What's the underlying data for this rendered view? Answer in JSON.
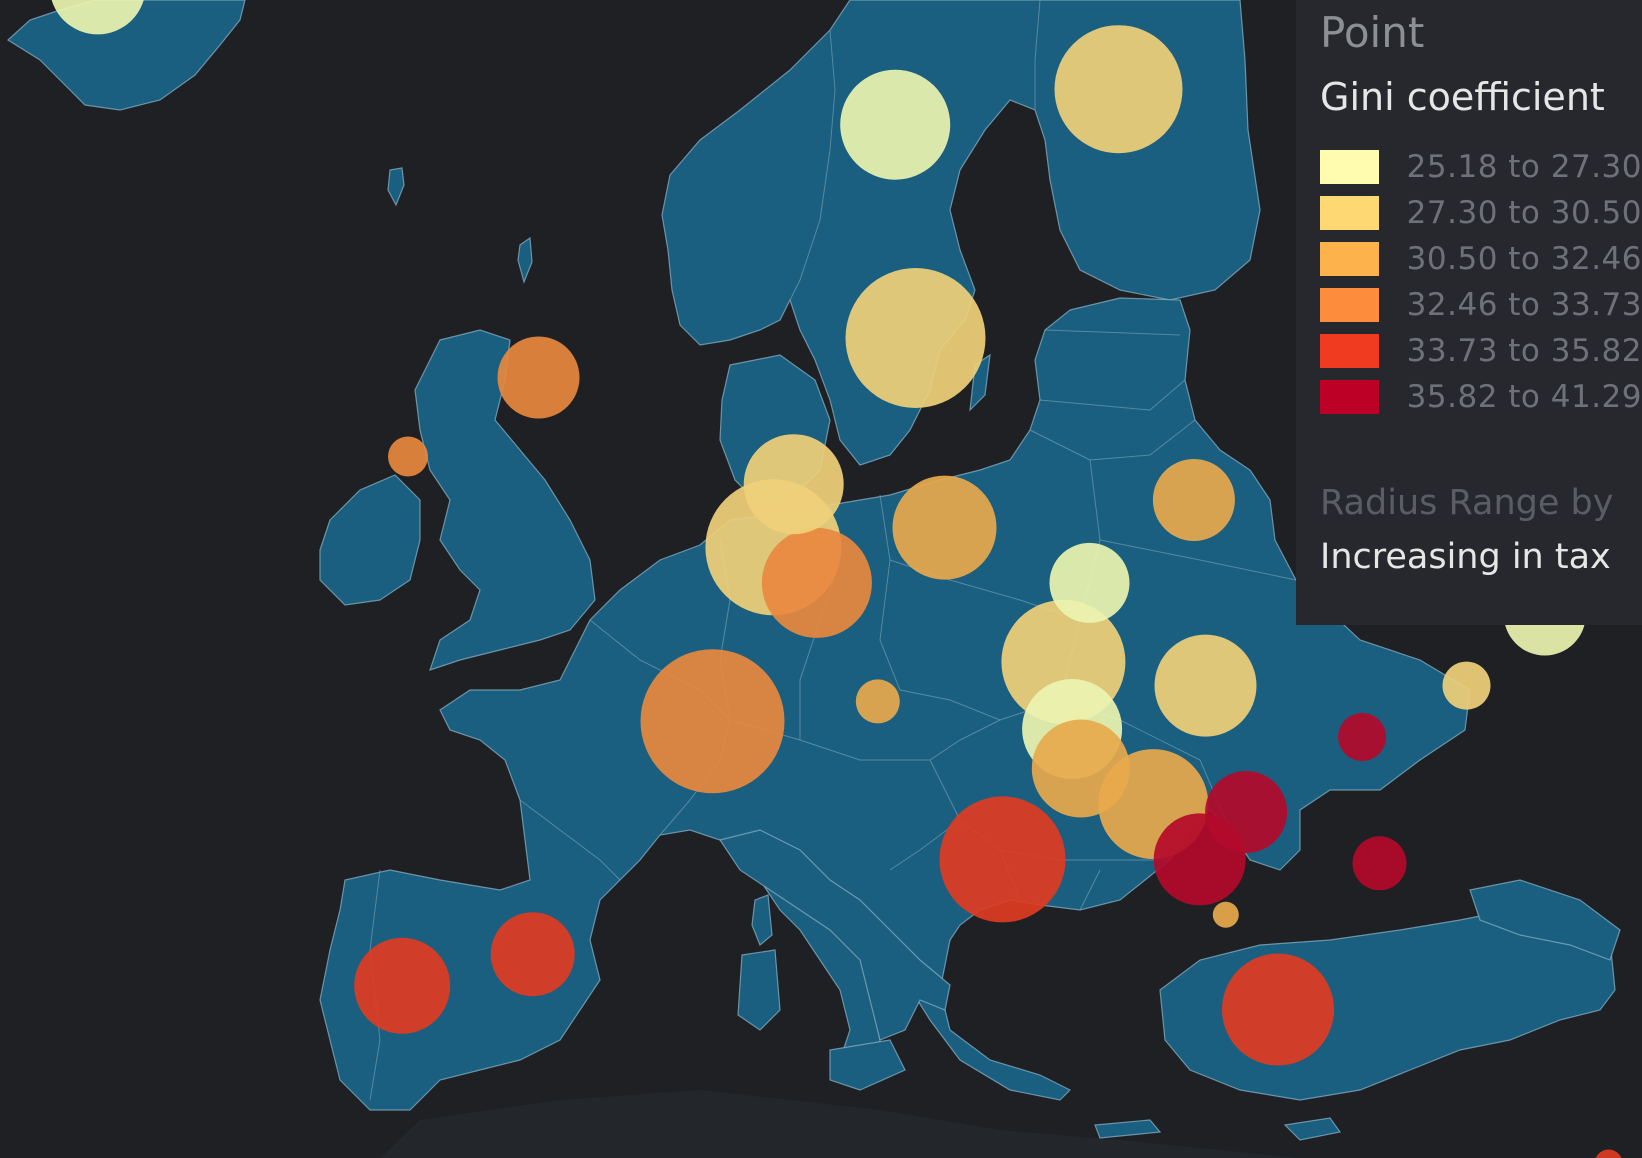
{
  "legend": {
    "title": "Point",
    "subtitle": "Gini coefficient",
    "items": [
      {
        "label": "25.18 to 27.30",
        "color": "#fffcb0"
      },
      {
        "label": "27.30 to 30.50",
        "color": "#fed872"
      },
      {
        "label": "30.50 to 32.46",
        "color": "#feb24c"
      },
      {
        "label": "32.46 to 33.73",
        "color": "#fd8d3c"
      },
      {
        "label": "33.73 to 35.82",
        "color": "#f03b20"
      },
      {
        "label": "35.82 to 41.29",
        "color": "#bd0026"
      }
    ],
    "radius_label": "Radius Range by",
    "radius_value": "Increasing in tax"
  },
  "colors": {
    "background": "#1e2024",
    "land": "#1a5f80",
    "bubbles": [
      "#ecf4b0",
      "#f0d07a",
      "#e8a94c",
      "#e8883e",
      "#e03c22",
      "#b40a2a"
    ]
  },
  "chart_data": {
    "type": "scatter",
    "title": "Gini coefficient",
    "color_variable": "Gini coefficient",
    "radius_variable": "Increasing in tax",
    "bins": [
      {
        "class": 1,
        "range": [
          25.18,
          27.3
        ]
      },
      {
        "class": 2,
        "range": [
          27.3,
          30.5
        ]
      },
      {
        "class": 3,
        "range": [
          30.5,
          32.46
        ]
      },
      {
        "class": 4,
        "range": [
          32.46,
          33.73
        ]
      },
      {
        "class": 5,
        "range": [
          33.73,
          35.82
        ]
      },
      {
        "class": 6,
        "range": [
          35.82,
          41.29
        ]
      }
    ],
    "points": [
      {
        "lon": -18.7,
        "lat": 64.9,
        "class": 1,
        "size": 48
      },
      {
        "lon": 8.8,
        "lat": 61.4,
        "class": 1,
        "size": 55
      },
      {
        "lon": 16.5,
        "lat": 62.3,
        "class": 2,
        "size": 64
      },
      {
        "lon": 26.2,
        "lat": 64.5,
        "class": 1,
        "size": 62
      },
      {
        "lon": 9.5,
        "lat": 56.0,
        "class": 2,
        "size": 70
      },
      {
        "lon": 25.0,
        "lat": 58.7,
        "class": 4,
        "size": 37
      },
      {
        "lon": 24.8,
        "lat": 57.0,
        "class": 5,
        "size": 31
      },
      {
        "lon": 23.9,
        "lat": 55.3,
        "class": 6,
        "size": 27
      },
      {
        "lon": -3.5,
        "lat": 55.0,
        "class": 4,
        "size": 41
      },
      {
        "lon": -8.0,
        "lat": 53.0,
        "class": 4,
        "size": 20
      },
      {
        "lon": 28.0,
        "lat": 53.5,
        "class": 1,
        "size": 44
      },
      {
        "lon": 5.3,
        "lat": 52.3,
        "class": 2,
        "size": 50
      },
      {
        "lon": 4.6,
        "lat": 50.7,
        "class": 2,
        "size": 68
      },
      {
        "lon": 6.1,
        "lat": 49.8,
        "class": 4,
        "size": 55
      },
      {
        "lon": 10.5,
        "lat": 51.2,
        "class": 3,
        "size": 52
      },
      {
        "lon": 19.1,
        "lat": 51.9,
        "class": 3,
        "size": 41
      },
      {
        "lon": 15.5,
        "lat": 49.8,
        "class": 1,
        "size": 40
      },
      {
        "lon": 14.6,
        "lat": 47.8,
        "class": 2,
        "size": 62
      },
      {
        "lon": 19.5,
        "lat": 47.2,
        "class": 2,
        "size": 51
      },
      {
        "lon": 31.2,
        "lat": 49.0,
        "class": 1,
        "size": 41
      },
      {
        "lon": 28.5,
        "lat": 47.2,
        "class": 2,
        "size": 24
      },
      {
        "lon": 2.5,
        "lat": 46.3,
        "class": 4,
        "size": 72
      },
      {
        "lon": 8.2,
        "lat": 46.8,
        "class": 3,
        "size": 22
      },
      {
        "lon": 14.9,
        "lat": 46.1,
        "class": 1,
        "size": 50
      },
      {
        "lon": 15.2,
        "lat": 45.1,
        "class": 3,
        "size": 49
      },
      {
        "lon": 17.7,
        "lat": 44.2,
        "class": 3,
        "size": 55
      },
      {
        "lon": 24.9,
        "lat": 45.9,
        "class": 6,
        "size": 24
      },
      {
        "lon": 20.9,
        "lat": 44.0,
        "class": 6,
        "size": 41
      },
      {
        "lon": 19.3,
        "lat": 42.8,
        "class": 6,
        "size": 46
      },
      {
        "lon": 25.5,
        "lat": 42.7,
        "class": 6,
        "size": 27
      },
      {
        "lon": 12.5,
        "lat": 42.8,
        "class": 5,
        "size": 63
      },
      {
        "lon": 20.2,
        "lat": 41.4,
        "class": 3,
        "size": 13
      },
      {
        "lon": 22.0,
        "lat": 39.0,
        "class": 5,
        "size": 56
      },
      {
        "lon": -3.7,
        "lat": 40.4,
        "class": 5,
        "size": 42
      },
      {
        "lon": -8.2,
        "lat": 39.6,
        "class": 5,
        "size": 48
      },
      {
        "lon": 35.2,
        "lat": 39.0,
        "class": 6,
        "size": 17
      },
      {
        "lon": 43.4,
        "lat": 42.3,
        "class": 6,
        "size": 14
      },
      {
        "lon": 45.0,
        "lat": 40.1,
        "class": 3,
        "size": 7
      },
      {
        "lon": 33.4,
        "lat": 35.1,
        "class": 5,
        "size": 14
      }
    ]
  }
}
